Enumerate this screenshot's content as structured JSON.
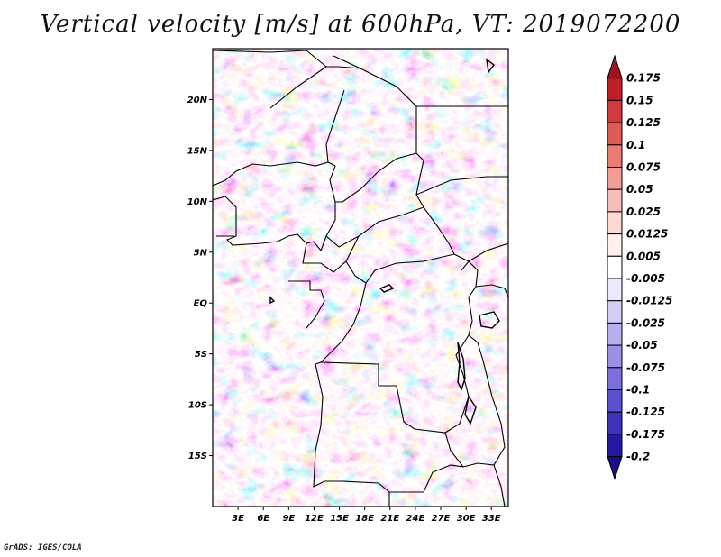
{
  "title": "Vertical velocity [m/s] at 600hPa, VT: 2019072200",
  "credit": "GrADS: IGES/COLA",
  "map": {
    "lat_labels": [
      "20N",
      "15N",
      "10N",
      "5N",
      "EQ",
      "5S",
      "10S",
      "15S"
    ],
    "lat_values": [
      20,
      15,
      10,
      5,
      0,
      -5,
      -10,
      -15
    ],
    "lon_labels": [
      "3E",
      "6E",
      "9E",
      "12E",
      "15E",
      "18E",
      "21E",
      "24E",
      "27E",
      "30E",
      "33E"
    ],
    "lon_values": [
      3,
      6,
      9,
      12,
      15,
      18,
      21,
      24,
      27,
      30,
      33
    ],
    "lon_range": [
      0,
      35
    ],
    "lat_range": [
      -20,
      25
    ]
  },
  "colorbar": {
    "labels": [
      "0.175",
      "0.15",
      "0.125",
      "0.1",
      "0.075",
      "0.05",
      "0.025",
      "0.0125",
      "0.005",
      "-0.005",
      "-0.0125",
      "-0.025",
      "-0.05",
      "-0.075",
      "-0.1",
      "-0.125",
      "-0.175",
      "-0.2"
    ],
    "colors": [
      "#a0141e",
      "#be1f28",
      "#d2393a",
      "#e05a55",
      "#ea7c74",
      "#f29d96",
      "#f8bdb8",
      "#fcd9d5",
      "#fff0ee",
      "#ffffff",
      "#ebe9fb",
      "#d2cef6",
      "#b7b0ef",
      "#9a90e6",
      "#7c70dc",
      "#5c50cf",
      "#3c32bb",
      "#2418a0",
      "#18108a"
    ]
  }
}
